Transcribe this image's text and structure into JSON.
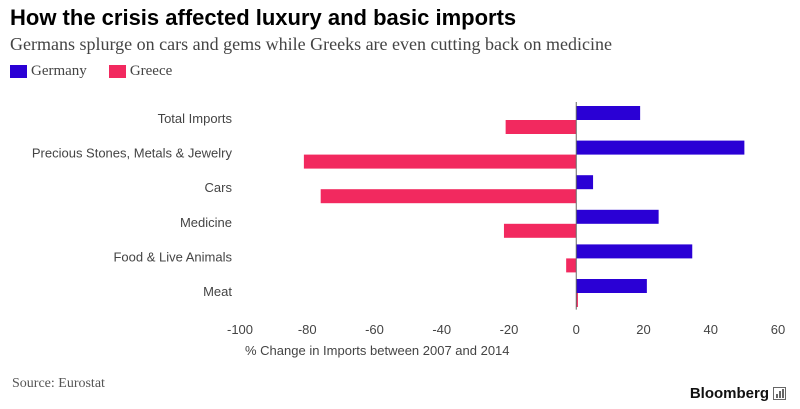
{
  "title": "How the crisis affected luxury and basic imports",
  "subtitle": "Germans splurge on cars and gems while Greeks are even cutting back on medicine",
  "legend": [
    {
      "name": "Germany",
      "color": "#2a00d5"
    },
    {
      "name": "Greece",
      "color": "#f2295f"
    }
  ],
  "chart_data": {
    "type": "bar",
    "orientation": "horizontal",
    "categories": [
      "Total Imports",
      "Precious Stones, Metals & Jewelry",
      "Cars",
      "Medicine",
      "Food & Live Animals",
      "Meat"
    ],
    "series": [
      {
        "name": "Germany",
        "color": "#2a00d5",
        "values": [
          19,
          50,
          5,
          24.5,
          34.5,
          21
        ]
      },
      {
        "name": "Greece",
        "color": "#f2295f",
        "values": [
          -21,
          -81,
          -76,
          -21.5,
          -3,
          0.5
        ]
      }
    ],
    "xlabel": "% Change in Imports between 2007 and 2014",
    "xlim": [
      -100,
      60
    ],
    "xticks": [
      -100,
      -80,
      -60,
      -40,
      -20,
      0,
      20,
      40,
      60
    ],
    "xtick_labels": [
      "-100",
      "-80",
      "-60",
      "-40",
      "-20",
      "0",
      "20",
      "40",
      "60"
    ],
    "grid": false,
    "legend_position": "top-left"
  },
  "source": "Source: Eurostat",
  "brand": "Bloomberg"
}
